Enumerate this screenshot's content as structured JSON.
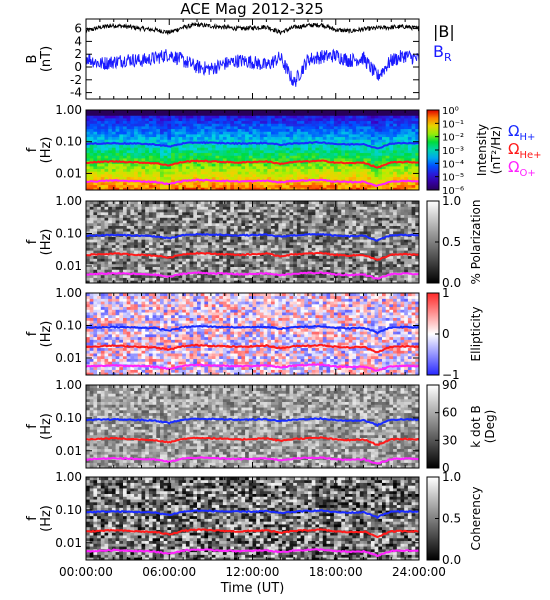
{
  "title": "ACE Mag 2012-325",
  "colors": {
    "b_total": "#000000",
    "b_radial": "#1a1aff",
    "cyclotron_h": "#1a2bff",
    "cyclotron_he": "#ff1a1a",
    "cyclotron_o": "#ff22ff",
    "axis": "#000000"
  },
  "x_axis": {
    "label": "Time (UT)",
    "ticks": [
      "00:00:00",
      "06:00:00",
      "12:00:00",
      "18:00:00",
      "24:00:00"
    ],
    "range_hours": [
      0,
      24
    ]
  },
  "chart_data": [
    {
      "type": "line",
      "panel": "magnetic-field",
      "ylabel": "B",
      "yunit": "(nT)",
      "ylim": [
        -5,
        7.5
      ],
      "yticks": [
        "-4",
        "-2",
        "0",
        "2",
        "4",
        "6"
      ],
      "series": [
        {
          "name": "|B|",
          "x": [
            0,
            1,
            2,
            3,
            4,
            5,
            6,
            7,
            8,
            9,
            10,
            11,
            12,
            13,
            14,
            15,
            16,
            17,
            18,
            19,
            20,
            21,
            22,
            23,
            24
          ],
          "values": [
            5.6,
            6.2,
            6.5,
            6.3,
            6.0,
            5.8,
            5.4,
            6.2,
            6.6,
            6.4,
            6.2,
            6.0,
            6.1,
            6.3,
            5.4,
            6.2,
            6.5,
            6.6,
            5.8,
            5.6,
            5.9,
            6.1,
            6.2,
            6.3,
            6.0
          ]
        },
        {
          "name": "B",
          "subscript": "R",
          "x": [
            0,
            1,
            2,
            3,
            4,
            5,
            6,
            7,
            8,
            9,
            10,
            11,
            12,
            13,
            14,
            15,
            16,
            17,
            18,
            19,
            20,
            21,
            22,
            23,
            24
          ],
          "values": [
            1.5,
            0.5,
            0.8,
            1.2,
            1.0,
            1.4,
            2.0,
            1.0,
            0.0,
            -0.3,
            0.5,
            1.0,
            0.8,
            0.2,
            1.5,
            -2.5,
            1.2,
            1.6,
            1.8,
            1.0,
            1.4,
            -1.5,
            1.0,
            1.8,
            1.2
          ]
        }
      ]
    },
    {
      "type": "heatmap",
      "panel": "power-spectrum",
      "ylabel": "f",
      "yunit": "(Hz)",
      "yscale": "log",
      "ylim": [
        0.003,
        1.0
      ],
      "yticks": [
        "1.00",
        "0.10",
        "0.01"
      ],
      "colorbar": {
        "label": "Intensity",
        "unit": "(nT²/Hz)",
        "ticks": [
          "10⁰",
          "10⁻¹",
          "10⁻²",
          "10⁻³",
          "10⁻⁴",
          "10⁻⁵",
          "10⁻⁶"
        ],
        "palette": "rainbow"
      },
      "legend": [
        {
          "symbol": "Ω",
          "sub": "H+",
          "color": "#1a2bff"
        },
        {
          "symbol": "Ω",
          "sub": "He+",
          "color": "#ff1a1a"
        },
        {
          "symbol": "Ω",
          "sub": "O+",
          "color": "#ff22ff"
        }
      ]
    },
    {
      "type": "heatmap",
      "panel": "polarization",
      "ylabel": "f",
      "yunit": "(Hz)",
      "yscale": "log",
      "ylim": [
        0.003,
        1.0
      ],
      "yticks": [
        "1.00",
        "0.10",
        "0.01"
      ],
      "colorbar": {
        "label": "% Polarization",
        "unit": "",
        "ticks": [
          "1.0",
          "0.5",
          "0.0"
        ],
        "palette": "gray"
      }
    },
    {
      "type": "heatmap",
      "panel": "ellipticity",
      "ylabel": "f",
      "yunit": "(Hz)",
      "yscale": "log",
      "ylim": [
        0.003,
        1.0
      ],
      "yticks": [
        "1.00",
        "0.10",
        "0.01"
      ],
      "colorbar": {
        "label": "Ellipticity",
        "unit": "",
        "ticks": [
          "1",
          "0",
          "−1"
        ],
        "palette": "bwr"
      }
    },
    {
      "type": "heatmap",
      "panel": "wave-normal-angle",
      "ylabel": "f",
      "yunit": "(Hz)",
      "yscale": "log",
      "ylim": [
        0.003,
        1.0
      ],
      "yticks": [
        "1.00",
        "0.10",
        "0.01"
      ],
      "colorbar": {
        "label": "k dot B",
        "unit": "(Deg)",
        "ticks": [
          "90",
          "60",
          "30",
          "0"
        ],
        "palette": "gray"
      }
    },
    {
      "type": "heatmap",
      "panel": "coherency",
      "ylabel": "f",
      "yunit": "(Hz)",
      "yscale": "log",
      "ylim": [
        0.003,
        1.0
      ],
      "yticks": [
        "1.00",
        "0.10",
        "0.01"
      ],
      "colorbar": {
        "label": "Coherency",
        "unit": "",
        "ticks": [
          "1.0",
          "0.5",
          "0.0"
        ],
        "palette": "gray"
      }
    }
  ],
  "cyclotron_lines": {
    "x": [
      0,
      1,
      2,
      3,
      4,
      5,
      6,
      7,
      8,
      9,
      10,
      11,
      12,
      13,
      14,
      15,
      16,
      17,
      18,
      19,
      20,
      21,
      22,
      23,
      24
    ],
    "h_plus_hz": [
      0.085,
      0.088,
      0.09,
      0.088,
      0.086,
      0.082,
      0.07,
      0.088,
      0.095,
      0.092,
      0.09,
      0.088,
      0.089,
      0.091,
      0.08,
      0.088,
      0.093,
      0.095,
      0.085,
      0.082,
      0.085,
      0.06,
      0.088,
      0.09,
      0.088
    ],
    "he_plus_hz": [
      0.022,
      0.023,
      0.024,
      0.023,
      0.022,
      0.021,
      0.018,
      0.023,
      0.025,
      0.024,
      0.023,
      0.022,
      0.023,
      0.024,
      0.02,
      0.023,
      0.024,
      0.025,
      0.022,
      0.021,
      0.022,
      0.015,
      0.022,
      0.023,
      0.022
    ],
    "o_plus_hz": [
      0.0055,
      0.0057,
      0.006,
      0.0058,
      0.0056,
      0.0054,
      0.0046,
      0.0058,
      0.0062,
      0.006,
      0.0058,
      0.0056,
      0.0057,
      0.0059,
      0.0052,
      0.0058,
      0.0061,
      0.0062,
      0.0055,
      0.0053,
      0.0055,
      0.004,
      0.0056,
      0.0058,
      0.0056
    ]
  }
}
